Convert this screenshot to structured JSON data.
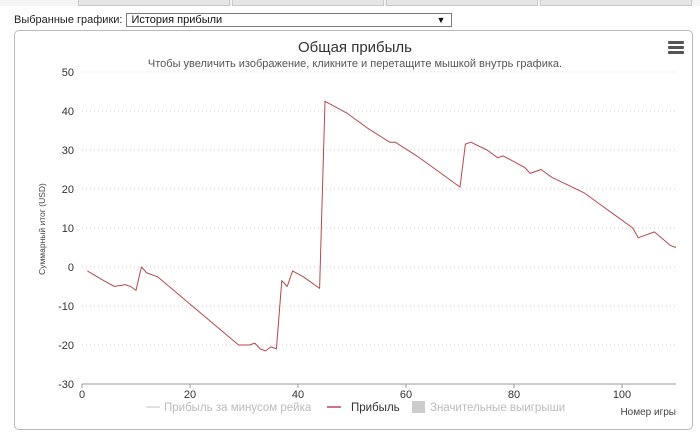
{
  "toolbar": {
    "selector_label": "Выбранные графики:",
    "selected_chart": "История прибыли"
  },
  "chart_data": {
    "type": "line",
    "title": "Общая прибыль",
    "subtitle": "Чтобы увеличить изображение, кликните и перетащите мышкой внутрь графика.",
    "xlabel": "Номер игры",
    "ylabel": "Суммарный итог (USD)",
    "xlim": [
      0,
      110
    ],
    "ylim": [
      -30,
      50
    ],
    "xticks": [
      0,
      20,
      40,
      60,
      80,
      100
    ],
    "yticks": [
      -30,
      -20,
      -10,
      0,
      10,
      20,
      30,
      40,
      50
    ],
    "grid": true,
    "legend_position": "bottom-center",
    "colors": {
      "profit": "#b44a4a",
      "profit_no_rake": "#d9d9d9",
      "big_wins": "#cccccc",
      "grid": "#cfcfcf"
    },
    "legend": [
      {
        "label": "Прибыль за минусом рейка",
        "marker": "line",
        "color": "#d9d9d9",
        "text_color": "#bbbbbb"
      },
      {
        "label": "Прибыль",
        "marker": "line",
        "color": "#b44a4a",
        "text_color": "#333333"
      },
      {
        "label": "Значительные выигрыши",
        "marker": "box",
        "color": "#cccccc",
        "text_color": "#bbbbbb"
      }
    ],
    "series": [
      {
        "name": "Прибыль",
        "x": [
          1,
          4,
          6,
          8,
          9,
          10,
          11,
          12,
          14,
          17,
          20,
          23,
          26,
          29,
          31,
          32,
          33,
          34,
          35,
          36,
          37,
          38,
          39,
          41,
          44,
          45,
          49,
          53,
          57,
          58,
          62,
          66,
          70,
          71,
          72,
          75,
          77,
          78,
          80,
          82,
          83,
          85,
          86,
          87,
          90,
          93,
          96,
          99,
          102,
          103,
          106,
          109,
          110
        ],
        "y": [
          -1,
          -3.5,
          -5,
          -4.5,
          -5,
          -6,
          0,
          -1.5,
          -2.5,
          -6,
          -9.5,
          -13,
          -16.5,
          -20,
          -20,
          -19.5,
          -21,
          -21.5,
          -20.5,
          -21,
          -3.5,
          -5,
          -1,
          -2.5,
          -5.5,
          42.5,
          39.5,
          35.5,
          32,
          32,
          28.5,
          24.5,
          20.5,
          31.5,
          32,
          30,
          28,
          28.5,
          27,
          25.5,
          24,
          25,
          24,
          23,
          21,
          19,
          16,
          13,
          10,
          7.5,
          9,
          5.5,
          5
        ]
      }
    ]
  }
}
